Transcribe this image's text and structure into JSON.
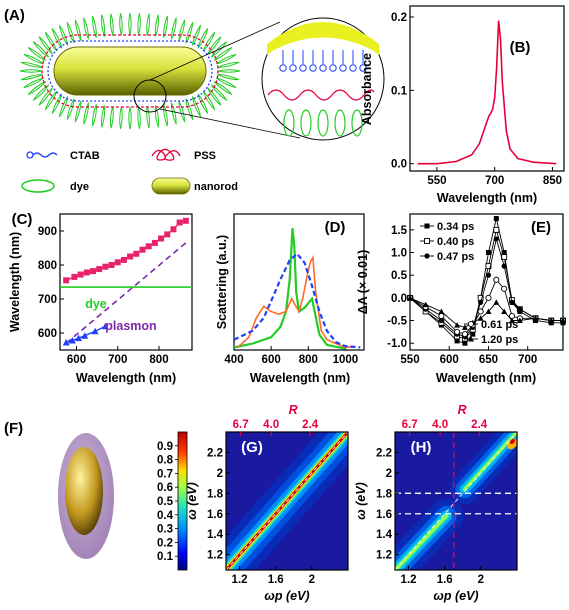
{
  "panel_labels": {
    "A": "(A)",
    "B": "(B)",
    "C": "(C)",
    "D": "(D)",
    "E": "(E)",
    "F": "(F)",
    "G": "(G)",
    "H": "(H)"
  },
  "legend_A": {
    "ctab": "CTAB",
    "pss": "PSS",
    "dye": "dye",
    "nanorod": "nanorod"
  },
  "colors": {
    "red": "#e8003d",
    "blue": "#2040ff",
    "green": "#22cc22",
    "purple": "#7a2aa8",
    "pink": "#e8226b",
    "orange": "#ff6a2a",
    "map_low": "#1a1aa0"
  },
  "chart_data": [
    {
      "panel": "B",
      "type": "line",
      "xlabel": "Wavelength (nm)",
      "ylabel": "Absorbance",
      "xlim": [
        480,
        880
      ],
      "ylim": [
        -0.01,
        0.215
      ],
      "xticks": [
        550,
        700,
        850
      ],
      "yticks": [
        0.0,
        0.1,
        0.2
      ],
      "ytick_labels": [
        "0.0",
        "0.1",
        "0.2"
      ],
      "series": [
        {
          "color": "#e8003d",
          "x": [
            500,
            550,
            600,
            640,
            660,
            675,
            685,
            690,
            695,
            700,
            705,
            710,
            715,
            720,
            730,
            740,
            760,
            800,
            860
          ],
          "y": [
            0.0,
            0.0,
            0.003,
            0.012,
            0.027,
            0.05,
            0.065,
            0.069,
            0.075,
            0.09,
            0.13,
            0.195,
            0.17,
            0.11,
            0.045,
            0.02,
            0.007,
            0.002,
            0.0
          ]
        }
      ]
    },
    {
      "panel": "C",
      "type": "scatter",
      "xlabel": "Wavelength (nm)",
      "ylabel": "Wavelength (nm)",
      "xlim": [
        560,
        880
      ],
      "ylim": [
        550,
        950
      ],
      "xticks": [
        600,
        700,
        800
      ],
      "yticks": [
        600,
        700,
        800,
        900
      ],
      "annotations": {
        "dye": "dye",
        "plasmon": "plasmon"
      },
      "upper": {
        "color": "#e8226b",
        "x": [
          575,
          595,
          610,
          625,
          640,
          655,
          670,
          685,
          700,
          715,
          730,
          745,
          760,
          775,
          790,
          805,
          820,
          835,
          850,
          865
        ],
        "y": [
          755,
          765,
          772,
          778,
          782,
          788,
          795,
          800,
          808,
          815,
          825,
          833,
          845,
          855,
          865,
          878,
          890,
          905,
          925,
          930
        ]
      },
      "lower": {
        "color": "#2040ff",
        "x": [
          575,
          590,
          605,
          620,
          645,
          670
        ],
        "y": [
          572,
          578,
          585,
          592,
          605,
          620
        ]
      },
      "dye_line": {
        "color": "#22cc22",
        "y": 735
      },
      "plasmon_line": {
        "color": "#7a2aa8",
        "x": [
          575,
          865
        ],
        "y": [
          570,
          865
        ]
      }
    },
    {
      "panel": "D",
      "type": "line",
      "xlabel": "Wavelength (nm)",
      "ylabel": "Scattering (a.u.)",
      "xlim": [
        400,
        1100
      ],
      "ylim": [
        0,
        1.06
      ],
      "xticks": [
        400,
        600,
        800,
        1000
      ],
      "series": [
        {
          "name": "",
          "color": "#22cc22",
          "x": [
            400,
            500,
            600,
            650,
            680,
            700,
            715,
            725,
            735,
            750,
            780,
            820,
            860,
            900,
            1000
          ],
          "y": [
            0.02,
            0.05,
            0.1,
            0.18,
            0.3,
            0.55,
            0.95,
            0.8,
            0.45,
            0.3,
            0.33,
            0.4,
            0.12,
            0.04,
            0.01
          ]
        },
        {
          "name": "",
          "color": "#ff6a2a",
          "x": [
            420,
            480,
            520,
            560,
            600,
            640,
            680,
            710,
            730,
            750,
            770,
            790,
            810,
            825,
            840,
            870,
            900,
            950,
            1000,
            1050
          ],
          "y": [
            0.02,
            0.1,
            0.25,
            0.34,
            0.3,
            0.28,
            0.3,
            0.4,
            0.35,
            0.3,
            0.4,
            0.55,
            0.68,
            0.72,
            0.45,
            0.15,
            0.08,
            0.05,
            0.02,
            0.03
          ]
        },
        {
          "name": "",
          "color": "#2040ff",
          "x": [
            400,
            500,
            560,
            600,
            650,
            700,
            740,
            780,
            820,
            860,
            900,
            950,
            1000,
            1080
          ],
          "y": [
            0.08,
            0.15,
            0.25,
            0.38,
            0.55,
            0.7,
            0.75,
            0.68,
            0.5,
            0.3,
            0.15,
            0.06,
            0.03,
            0.02
          ]
        }
      ]
    },
    {
      "panel": "E",
      "type": "line",
      "xlabel": "Wavelength (nm)",
      "ylabel": "ΔA (× 0.01)",
      "xlim": [
        550,
        745
      ],
      "ylim": [
        -1.15,
        1.85
      ],
      "xticks": [
        550,
        600,
        650,
        700
      ],
      "yticks": [
        -1.0,
        -0.5,
        0.0,
        0.5,
        1.0,
        1.5
      ],
      "ytick_labels": [
        "-1.0",
        "-0.5",
        "0.0",
        "0.5",
        "1.0",
        "1.5"
      ],
      "series": [
        {
          "name": "0.34 ps",
          "marker": "square-filled",
          "x": [
            550,
            570,
            590,
            610,
            620,
            630,
            640,
            650,
            660,
            670,
            680,
            690,
            710,
            730,
            745
          ],
          "y": [
            0.0,
            -0.3,
            -0.6,
            -0.95,
            -1.0,
            -0.8,
            0.0,
            1.0,
            1.75,
            1.0,
            -0.1,
            -0.3,
            -0.5,
            -0.55,
            -0.55
          ]
        },
        {
          "name": "0.40 ps",
          "marker": "square-open",
          "x": [
            550,
            570,
            590,
            610,
            620,
            630,
            640,
            650,
            660,
            670,
            680,
            690,
            710,
            730,
            745
          ],
          "y": [
            0.0,
            -0.3,
            -0.55,
            -0.85,
            -0.9,
            -0.7,
            0.0,
            0.7,
            1.5,
            0.9,
            -0.05,
            -0.25,
            -0.45,
            -0.5,
            -0.5
          ]
        },
        {
          "name": "0.47 ps",
          "marker": "circle-filled",
          "x": [
            550,
            570,
            590,
            610,
            620,
            630,
            640,
            650,
            660,
            670,
            680,
            690,
            710,
            730,
            745
          ],
          "y": [
            0.0,
            -0.25,
            -0.5,
            -0.8,
            -0.85,
            -0.65,
            -0.1,
            0.5,
            1.3,
            0.7,
            -0.1,
            -0.25,
            -0.45,
            -0.5,
            -0.5
          ]
        },
        {
          "name": "0.61 ps",
          "marker": "circle-open",
          "x": [
            550,
            570,
            590,
            610,
            620,
            630,
            640,
            650,
            660,
            670,
            680,
            690,
            710,
            730,
            745
          ],
          "y": [
            0.0,
            -0.2,
            -0.4,
            -0.75,
            -0.8,
            -0.6,
            -0.3,
            0.0,
            0.4,
            0.2,
            -0.4,
            -0.45,
            -0.45,
            -0.5,
            -0.5
          ]
        },
        {
          "name": "1.20 ps",
          "marker": "triangle-filled",
          "x": [
            550,
            570,
            590,
            610,
            620,
            630,
            640,
            650,
            660,
            670,
            680,
            690,
            710,
            730,
            745
          ],
          "y": [
            0.0,
            -0.15,
            -0.3,
            -0.6,
            -0.65,
            -0.55,
            -0.45,
            -0.3,
            -0.1,
            -0.3,
            -0.5,
            -0.5,
            -0.45,
            -0.5,
            -0.5
          ]
        }
      ]
    },
    {
      "panel": "G",
      "type": "heatmap",
      "xlabel": "ωp (eV)",
      "ylabel": "ω (eV)",
      "top_label": "R",
      "xlim": [
        1.05,
        2.4
      ],
      "ylim": [
        1.05,
        2.4
      ],
      "xticks": [
        1.2,
        1.6,
        2.0
      ],
      "yticks": [
        1.2,
        1.4,
        1.6,
        1.8,
        2.0,
        2.2
      ],
      "top_ticks": [
        "6.7",
        "4.0",
        "2.4"
      ],
      "colorbar": {
        "ticks": [
          0.1,
          0.2,
          0.3,
          0.4,
          0.5,
          0.6,
          0.7,
          0.8,
          0.9
        ]
      }
    },
    {
      "panel": "H",
      "type": "heatmap",
      "xlabel": "ωp (eV)",
      "ylabel": "ω (eV)",
      "top_label": "R",
      "xlim": [
        1.05,
        2.4
      ],
      "ylim": [
        1.05,
        2.4
      ],
      "xticks": [
        1.2,
        1.6,
        2.0
      ],
      "yticks": [
        1.2,
        1.4,
        1.6,
        1.8,
        2.0,
        2.2
      ],
      "top_ticks": [
        "6.7",
        "4.0",
        "2.4"
      ],
      "hlines": [
        1.6,
        1.8
      ],
      "vline": 1.7
    }
  ]
}
